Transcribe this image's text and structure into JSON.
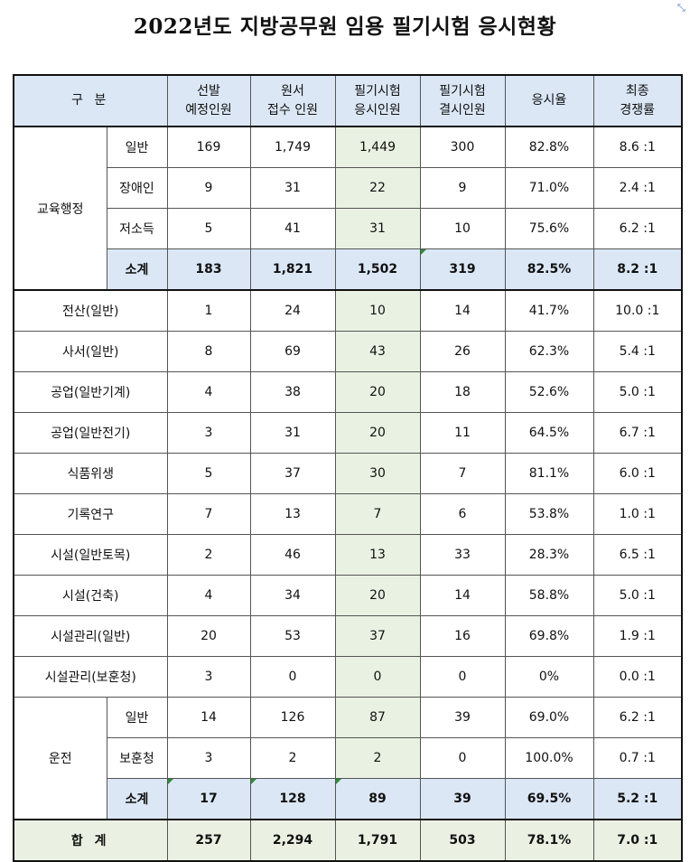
{
  "title": "2022년도 지방공무원 임용 필기시험 응시현황",
  "headers": {
    "category": "구  분",
    "selection": "선발\n예정인원",
    "applications": "원서\n접수 인원",
    "written_attend": "필기시험\n응시인원",
    "written_absent": "필기시험\n결시인원",
    "rate": "응시율",
    "competition": "최종\n경쟁률"
  },
  "edu": {
    "group": "교육행정",
    "rows": [
      {
        "sub": "일반",
        "sel": "169",
        "app": "1,749",
        "att": "1,449",
        "abs": "300",
        "rate": "82.8%",
        "comp": "8.6 :1"
      },
      {
        "sub": "장애인",
        "sel": "9",
        "app": "31",
        "att": "22",
        "abs": "9",
        "rate": "71.0%",
        "comp": "2.4 :1"
      },
      {
        "sub": "저소득",
        "sel": "5",
        "app": "41",
        "att": "31",
        "abs": "10",
        "rate": "75.6%",
        "comp": "6.2 :1"
      }
    ],
    "subtotal": {
      "sub": "소계",
      "sel": "183",
      "app": "1,821",
      "att": "1,502",
      "abs": "319",
      "rate": "82.5%",
      "comp": "8.2 :1"
    }
  },
  "singles": [
    {
      "cat": "전산(일반)",
      "sel": "1",
      "app": "24",
      "att": "10",
      "abs": "14",
      "rate": "41.7%",
      "comp": "10.0 :1"
    },
    {
      "cat": "사서(일반)",
      "sel": "8",
      "app": "69",
      "att": "43",
      "abs": "26",
      "rate": "62.3%",
      "comp": "5.4 :1"
    },
    {
      "cat": "공업(일반기계)",
      "sel": "4",
      "app": "38",
      "att": "20",
      "abs": "18",
      "rate": "52.6%",
      "comp": "5.0 :1"
    },
    {
      "cat": "공업(일반전기)",
      "sel": "3",
      "app": "31",
      "att": "20",
      "abs": "11",
      "rate": "64.5%",
      "comp": "6.7 :1"
    },
    {
      "cat": "식품위생",
      "sel": "5",
      "app": "37",
      "att": "30",
      "abs": "7",
      "rate": "81.1%",
      "comp": "6.0 :1"
    },
    {
      "cat": "기록연구",
      "sel": "7",
      "app": "13",
      "att": "7",
      "abs": "6",
      "rate": "53.8%",
      "comp": "1.0 :1"
    },
    {
      "cat": "시설(일반토목)",
      "sel": "2",
      "app": "46",
      "att": "13",
      "abs": "33",
      "rate": "28.3%",
      "comp": "6.5 :1"
    },
    {
      "cat": "시설(건축)",
      "sel": "4",
      "app": "34",
      "att": "20",
      "abs": "14",
      "rate": "58.8%",
      "comp": "5.0 :1"
    },
    {
      "cat": "시설관리(일반)",
      "sel": "20",
      "app": "53",
      "att": "37",
      "abs": "16",
      "rate": "69.8%",
      "comp": "1.9 :1"
    },
    {
      "cat": "시설관리(보훈청)",
      "sel": "3",
      "app": "0",
      "att": "0",
      "abs": "0",
      "rate": "0%",
      "comp": "0.0 :1"
    }
  ],
  "drive": {
    "group": "운전",
    "rows": [
      {
        "sub": "일반",
        "sel": "14",
        "app": "126",
        "att": "87",
        "abs": "39",
        "rate": "69.0%",
        "comp": "6.2 :1"
      },
      {
        "sub": "보훈청",
        "sel": "3",
        "app": "2",
        "att": "2",
        "abs": "0",
        "rate": "100.0%",
        "comp": "0.7 :1"
      }
    ],
    "subtotal": {
      "sub": "소계",
      "sel": "17",
      "app": "128",
      "att": "89",
      "abs": "39",
      "rate": "69.5%",
      "comp": "5.2 :1"
    }
  },
  "total": {
    "label": "합  계",
    "sel": "257",
    "app": "2,294",
    "att": "1,791",
    "abs": "503",
    "rate": "78.1%",
    "comp": "7.0 :1"
  },
  "icons": {
    "corner": "resize-handle-icon"
  }
}
